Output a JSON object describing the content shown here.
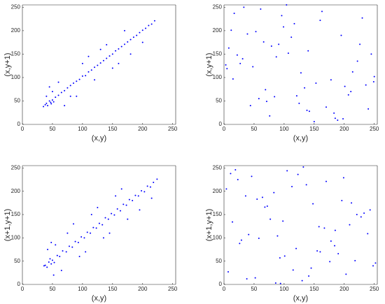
{
  "chart_data": [
    {
      "type": "scatter",
      "xlabel": "(x,y)",
      "ylabel": "(x,y+1)",
      "color": "#0000ff",
      "xlim": [
        0,
        255
      ],
      "ylim": [
        0,
        255
      ],
      "xticks": [
        0,
        50,
        100,
        150,
        200,
        250
      ],
      "yticks": [
        0,
        50,
        100,
        150,
        200,
        250
      ],
      "x": [
        35,
        40,
        42,
        45,
        48,
        50,
        52,
        55,
        38,
        47,
        60,
        65,
        70,
        75,
        80,
        85,
        90,
        95,
        100,
        105,
        110,
        115,
        120,
        125,
        130,
        135,
        140,
        145,
        150,
        155,
        160,
        165,
        170,
        175,
        180,
        185,
        190,
        195,
        200,
        205,
        210,
        215,
        220,
        60,
        80,
        100,
        120,
        140,
        160,
        180,
        200,
        45,
        70,
        130,
        150,
        90,
        110,
        170,
        50,
        40
      ],
      "y": [
        38,
        45,
        40,
        50,
        44,
        52,
        48,
        58,
        42,
        47,
        62,
        68,
        72,
        78,
        83,
        88,
        92,
        96,
        103,
        104,
        112,
        116,
        122,
        126,
        131,
        136,
        141,
        146,
        150,
        157,
        161,
        166,
        171,
        176,
        181,
        186,
        190,
        196,
        201,
        205,
        211,
        214,
        221,
        90,
        60,
        130,
        95,
        170,
        130,
        150,
        175,
        80,
        40,
        160,
        120,
        60,
        145,
        200,
        70,
        60
      ]
    },
    {
      "type": "scatter",
      "xlabel": "(x,y)",
      "ylabel": "(x,y+1)",
      "color": "#0000ff",
      "xlim": [
        0,
        255
      ],
      "ylim": [
        0,
        255
      ],
      "xticks": [
        0,
        50,
        100,
        150,
        200,
        250
      ],
      "yticks": [
        0,
        50,
        100,
        150,
        200,
        250
      ],
      "x": [
        12,
        240,
        87,
        153,
        33,
        198,
        66,
        121,
        5,
        230,
        178,
        44,
        99,
        140,
        211,
        27,
        76,
        163,
        250,
        58,
        112,
        189,
        8,
        134,
        222,
        71,
        96,
        15,
        245,
        183,
        39,
        128,
        207,
        61,
        170,
        91,
        3,
        236,
        117,
        150,
        22,
        84,
        195,
        48,
        138,
        226,
        104,
        69,
        160,
        31,
        249,
        125,
        185,
        53,
        17,
        214,
        79,
        142,
        201,
        107
      ],
      "y": [
        201,
        33,
        144,
        88,
        250,
        12,
        176,
        61,
        119,
        227,
        95,
        40,
        208,
        157,
        70,
        130,
        18,
        241,
        102,
        55,
        186,
        9,
        163,
        78,
        135,
        49,
        232,
        97,
        150,
        24,
        193,
        110,
        63,
        246,
        37,
        171,
        127,
        84,
        215,
        6,
        148,
        59,
        190,
        123,
        30,
        171,
        255,
        74,
        222,
        140,
        91,
        45,
        13,
        198,
        237,
        112,
        167,
        28,
        81,
        152
      ]
    },
    {
      "type": "scatter",
      "xlabel": "(x,y)",
      "ylabel": "(x+1,y+1)",
      "color": "#0000ff",
      "xlim": [
        0,
        255
      ],
      "ylim": [
        0,
        255
      ],
      "xticks": [
        0,
        50,
        100,
        150,
        200,
        250
      ],
      "yticks": [
        0,
        50,
        100,
        150,
        200,
        250
      ],
      "x": [
        38,
        44,
        41,
        50,
        46,
        53,
        36,
        58,
        48,
        62,
        67,
        73,
        78,
        83,
        88,
        93,
        98,
        103,
        108,
        113,
        118,
        123,
        128,
        133,
        138,
        143,
        148,
        153,
        158,
        163,
        168,
        173,
        178,
        183,
        188,
        193,
        198,
        203,
        208,
        213,
        218,
        224,
        55,
        75,
        95,
        115,
        135,
        155,
        175,
        195,
        215,
        42,
        65,
        125,
        145,
        85,
        105,
        165,
        52,
        48
      ],
      "y": [
        41,
        48,
        37,
        52,
        55,
        47,
        40,
        62,
        44,
        60,
        72,
        70,
        82,
        80,
        92,
        90,
        102,
        100,
        112,
        110,
        122,
        121,
        131,
        128,
        143,
        140,
        152,
        149,
        162,
        158,
        172,
        170,
        182,
        180,
        191,
        190,
        201,
        199,
        211,
        209,
        219,
        226,
        85,
        110,
        60,
        150,
        100,
        190,
        140,
        160,
        185,
        75,
        30,
        165,
        110,
        130,
        70,
        205,
        20,
        90
      ]
    },
    {
      "type": "scatter",
      "xlabel": "(x,y)",
      "ylabel": "(x+1,y+1)",
      "color": "#0000ff",
      "xlim": [
        0,
        255
      ],
      "ylim": [
        0,
        255
      ],
      "xticks": [
        0,
        50,
        100,
        150,
        200,
        250
      ],
      "yticks": [
        0,
        50,
        100,
        150,
        200,
        250
      ],
      "x": [
        77,
        190,
        23,
        141,
        212,
        58,
        105,
        248,
        36,
        167,
        93,
        130,
        4,
        221,
        184,
        46,
        115,
        72,
        239,
        155,
        19,
        98,
        203,
        64,
        176,
        137,
        29,
        243,
        86,
        158,
        11,
        120,
        196,
        52,
        228,
        101,
        170,
        41,
        145,
        83,
        209,
        26,
        132,
        252,
        68,
        185,
        7,
        113,
        160,
        233,
        94,
        55,
        178,
        123,
        14,
        218,
        148,
        38,
        199,
        89
      ],
      "y": [
        140,
        66,
        225,
        18,
        175,
        99,
        244,
        40,
        190,
        121,
        57,
        8,
        205,
        150,
        83,
        232,
        31,
        168,
        109,
        72,
        246,
        136,
        22,
        187,
        49,
        214,
        95,
        160,
        3,
        124,
        238,
        77,
        180,
        14,
        145,
        61,
        221,
        107,
        35,
        197,
        128,
        88,
        252,
        46,
        166,
        116,
        27,
        210,
        70,
        153,
        2,
        183,
        93,
        236,
        134,
        51,
        173,
        12,
        229,
        104
      ]
    }
  ]
}
